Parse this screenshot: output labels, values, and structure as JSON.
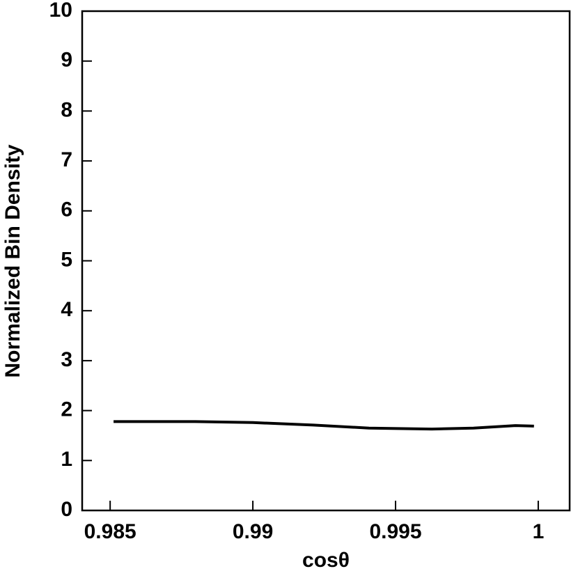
{
  "chart_data": {
    "type": "line",
    "xlabel": "cosθ",
    "ylabel": "Normalized Bin Density",
    "x": [
      0.98512,
      0.98798,
      0.99,
      0.99212,
      0.99407,
      0.99627,
      0.99773,
      0.9992,
      0.99985
    ],
    "series": [
      {
        "name": "density",
        "color": "#000000",
        "values": [
          1.78,
          1.78,
          1.76,
          1.71,
          1.65,
          1.63,
          1.65,
          1.7,
          1.69
        ]
      }
    ],
    "xlim": [
      0.98402,
      1.0011
    ],
    "xticks": [
      0.985,
      0.99,
      0.995,
      1
    ],
    "ylim": [
      0,
      10
    ],
    "yticks": [
      0,
      1,
      2,
      3,
      4,
      5,
      6,
      7,
      8,
      9,
      10
    ],
    "grid": false
  }
}
